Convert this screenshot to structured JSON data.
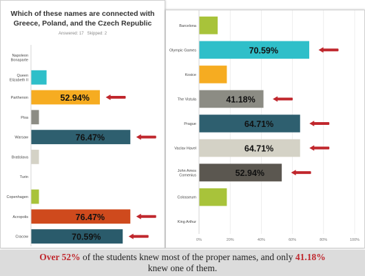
{
  "left_chart": {
    "title_line1": "Which of these names are connected with",
    "title_line2": "Greece, Poland, and the Czech Republic",
    "answered": "Answered: 17",
    "skipped": "Skipped: 2"
  },
  "caption": {
    "part1": "Over 52%",
    "part2": " of the students knew most of the proper names, and only ",
    "part3": "41.18%",
    "part4": "knew one of them."
  },
  "chart_data": [
    {
      "type": "bar",
      "orientation": "horizontal",
      "title": "Which of these names are connected with Greece, Poland, and the Czech Republic",
      "categories": [
        "Napoleon Bonaparte",
        "Queen Elizabeth II",
        "Parthenon",
        "Pisa",
        "Warsaw",
        "Bratislava",
        "Turin",
        "Copenhagen",
        "Acropolis",
        "Cracow"
      ],
      "values": [
        0,
        11.76,
        52.94,
        5.88,
        76.47,
        5.88,
        0,
        5.88,
        76.47,
        70.59
      ],
      "colors": [
        "#2fbfc9",
        "#2fbfc9",
        "#f6ac21",
        "#8c8c84",
        "#2e5f6f",
        "#d4d2c6",
        "#5b5750",
        "#a8c33a",
        "#cf4a1d",
        "#2a5b6b"
      ],
      "data_labels": [
        "",
        "",
        "52.94%",
        "",
        "76.47%",
        "",
        "",
        "",
        "76.47%",
        "70.59%"
      ],
      "arrows": [
        2,
        4,
        8,
        9
      ],
      "xlim": [
        0,
        100
      ]
    },
    {
      "type": "bar",
      "orientation": "horizontal",
      "categories": [
        "Barcelona",
        "Olympic Games",
        "Kosice",
        "The Vistula",
        "Prague",
        "Vaclav Havel",
        "John Amos Comenius",
        "Colosseum",
        "King Arthur"
      ],
      "values": [
        11.76,
        70.59,
        17.65,
        41.18,
        64.71,
        64.71,
        52.94,
        17.65,
        0
      ],
      "colors": [
        "#a8c33a",
        "#2fbfc9",
        "#f6ac21",
        "#8c8c84",
        "#2e5f6f",
        "#d4d2c6",
        "#5b5750",
        "#a8c33a",
        "#cf4a1d"
      ],
      "data_labels": [
        "",
        "70.59%",
        "",
        "41.18%",
        "64.71%",
        "64.71%",
        "52.94%",
        "",
        ""
      ],
      "arrows": [
        1,
        3,
        4,
        5,
        6
      ],
      "xlim": [
        0,
        100
      ],
      "xticks": [
        "0%",
        "20%",
        "40%",
        "60%",
        "80%",
        "100%"
      ]
    }
  ]
}
